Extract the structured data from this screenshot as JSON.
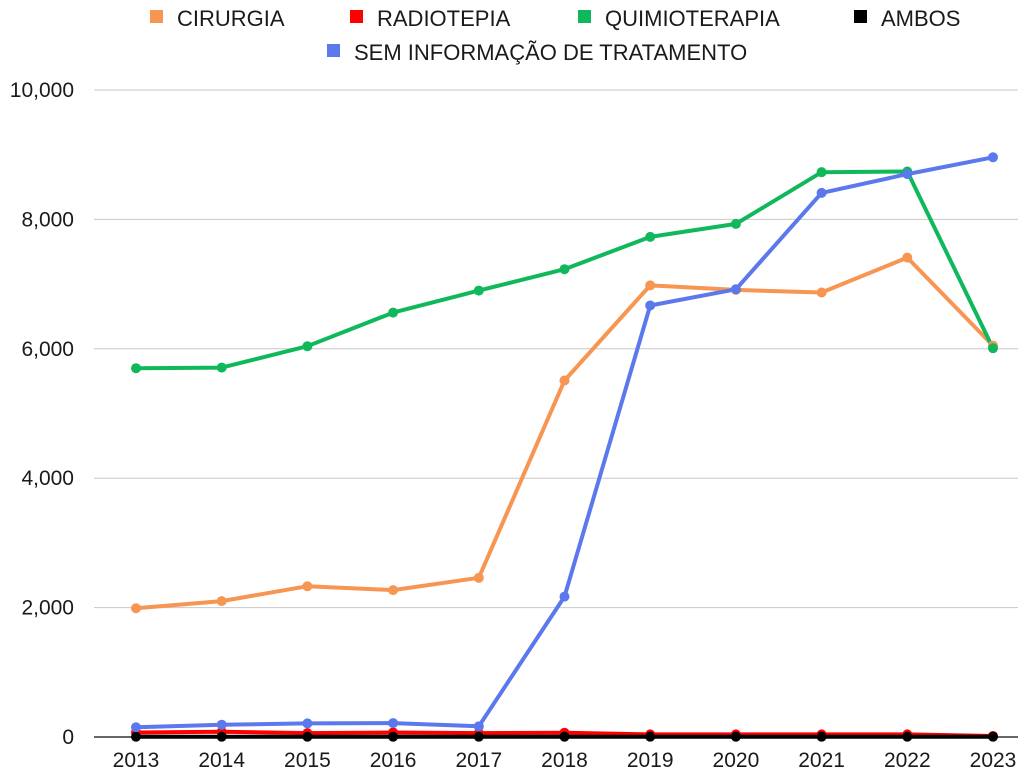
{
  "chart_data": {
    "type": "line",
    "title": "",
    "xlabel": "",
    "ylabel": "",
    "ylim": [
      0,
      10000
    ],
    "yticks": [
      0,
      2000,
      4000,
      6000,
      8000,
      10000
    ],
    "ytick_labels": [
      "0",
      "2,000",
      "4,000",
      "6,000",
      "8,000",
      "10,000"
    ],
    "grid": true,
    "legend_position": "top",
    "categories": [
      "2013",
      "2014",
      "2015",
      "2016",
      "2017",
      "2018",
      "2019",
      "2020",
      "2021",
      "2022",
      "2023"
    ],
    "series": [
      {
        "name": "CIRURGIA",
        "color": "#f79552",
        "values": [
          1990,
          2100,
          2330,
          2270,
          2460,
          5510,
          6980,
          6910,
          6870,
          7410,
          6050
        ]
      },
      {
        "name": "RADIOTEPIA",
        "color": "#ff0000",
        "values": [
          70,
          80,
          60,
          70,
          60,
          65,
          40,
          40,
          40,
          40,
          15
        ]
      },
      {
        "name": "QUIMIOTERAPIA",
        "color": "#10b85c",
        "values": [
          5700,
          5710,
          6040,
          6560,
          6900,
          7230,
          7730,
          7930,
          8730,
          8740,
          6010
        ]
      },
      {
        "name": "AMBOS",
        "color": "#000000",
        "values": [
          5,
          5,
          5,
          5,
          5,
          5,
          5,
          5,
          5,
          5,
          5
        ]
      },
      {
        "name": "SEM INFORMAÇÃO DE TRATAMENTO",
        "color": "#5b78ed",
        "values": [
          150,
          190,
          210,
          215,
          165,
          2170,
          6670,
          6920,
          8410,
          8700,
          8960
        ]
      }
    ]
  }
}
